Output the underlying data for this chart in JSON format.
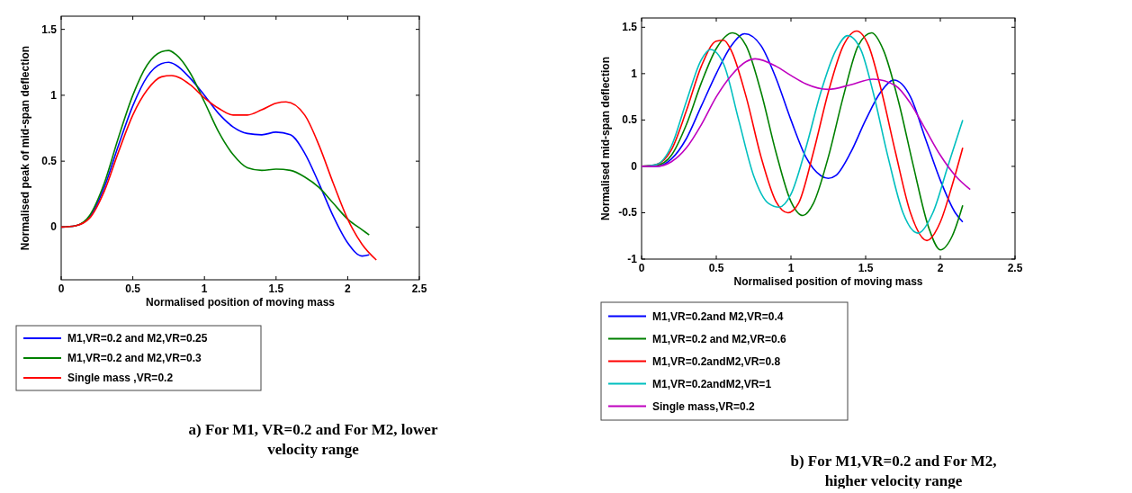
{
  "chart_data": [
    {
      "type": "line",
      "title": "a)    For M1, VR=0.2 and For M2, lower velocity range",
      "xlabel": "Normalised position of moving mass",
      "ylabel": "Normalised peak of mid-span deflection",
      "xlim": [
        0,
        2.5
      ],
      "xticks": [
        0,
        0.5,
        1,
        1.5,
        2,
        2.5
      ],
      "ylim": [
        -0.4,
        1.6
      ],
      "yticks": [
        0,
        0.5,
        1,
        1.5
      ],
      "legend": "bottom",
      "series": [
        {
          "name": "M1,VR=0.2 and M2,VR=0.25",
          "color": "#0000ff",
          "x": [
            0,
            0.1,
            0.2,
            0.3,
            0.4,
            0.5,
            0.6,
            0.7,
            0.75,
            0.8,
            0.9,
            1.0,
            1.1,
            1.2,
            1.3,
            1.4,
            1.5,
            1.6,
            1.7,
            1.8,
            1.9,
            2.0,
            2.1,
            2.15
          ],
          "values": [
            0,
            0.01,
            0.08,
            0.3,
            0.62,
            0.92,
            1.14,
            1.24,
            1.25,
            1.23,
            1.13,
            1.0,
            0.86,
            0.76,
            0.71,
            0.7,
            0.72,
            0.7,
            0.56,
            0.33,
            0.08,
            -0.12,
            -0.22,
            -0.21
          ]
        },
        {
          "name": "M1,VR=0.2 and M2,VR=0.3",
          "color": "#008000",
          "x": [
            0,
            0.1,
            0.2,
            0.3,
            0.4,
            0.5,
            0.6,
            0.7,
            0.75,
            0.8,
            0.9,
            1.0,
            1.1,
            1.2,
            1.3,
            1.4,
            1.5,
            1.6,
            1.7,
            1.8,
            1.9,
            2.0,
            2.1,
            2.15
          ],
          "values": [
            0,
            0.01,
            0.09,
            0.33,
            0.68,
            1.0,
            1.23,
            1.33,
            1.34,
            1.31,
            1.17,
            0.95,
            0.72,
            0.55,
            0.45,
            0.43,
            0.44,
            0.43,
            0.38,
            0.3,
            0.18,
            0.06,
            -0.02,
            -0.06
          ]
        },
        {
          "name": "Single mass ,VR=0.2",
          "color": "#ff0000",
          "x": [
            0,
            0.1,
            0.2,
            0.3,
            0.4,
            0.5,
            0.6,
            0.7,
            0.77,
            0.9,
            1.0,
            1.1,
            1.2,
            1.3,
            1.4,
            1.5,
            1.57,
            1.7,
            1.8,
            1.9,
            2.0,
            2.1,
            2.2
          ],
          "values": [
            0,
            0.01,
            0.07,
            0.27,
            0.57,
            0.85,
            1.04,
            1.14,
            1.15,
            1.08,
            0.98,
            0.9,
            0.85,
            0.85,
            0.89,
            0.94,
            0.95,
            0.85,
            0.62,
            0.33,
            0.06,
            -0.13,
            -0.25
          ]
        }
      ]
    },
    {
      "type": "line",
      "title": "b)            For M1,VR=0.2 and For M2, higher velocity range",
      "xlabel": "Normalised position of moving mass",
      "ylabel": "Normalised mid-span deflection",
      "xlim": [
        0,
        2.5
      ],
      "xticks": [
        0,
        0.5,
        1,
        1.5,
        2,
        2.5
      ],
      "ylim": [
        -1,
        1.6
      ],
      "yticks": [
        -1,
        -0.5,
        0,
        0.5,
        1,
        1.5
      ],
      "legend": "bottom",
      "series": [
        {
          "name": "M1,VR=0.2and M2,VR=0.4",
          "color": "#0000ff",
          "x": [
            0,
            0.1,
            0.2,
            0.3,
            0.4,
            0.5,
            0.6,
            0.69,
            0.8,
            0.9,
            1.0,
            1.1,
            1.2,
            1.25,
            1.3,
            1.4,
            1.5,
            1.6,
            1.69,
            1.8,
            1.9,
            2.0,
            2.1,
            2.15
          ],
          "values": [
            0,
            0,
            0.08,
            0.3,
            0.65,
            1.0,
            1.3,
            1.43,
            1.3,
            0.95,
            0.5,
            0.1,
            -0.1,
            -0.13,
            -0.1,
            0.15,
            0.5,
            0.8,
            0.93,
            0.75,
            0.3,
            -0.15,
            -0.5,
            -0.6
          ]
        },
        {
          "name": "M1,VR=0.2 and M2,VR=0.6",
          "color": "#008000",
          "x": [
            0,
            0.1,
            0.2,
            0.3,
            0.4,
            0.5,
            0.61,
            0.7,
            0.8,
            0.9,
            1.0,
            1.08,
            1.15,
            1.25,
            1.35,
            1.45,
            1.54,
            1.62,
            1.72,
            1.82,
            1.92,
            2.0,
            2.08,
            2.15
          ],
          "values": [
            0,
            0.01,
            0.12,
            0.45,
            0.9,
            1.27,
            1.44,
            1.3,
            0.8,
            0.15,
            -0.38,
            -0.53,
            -0.4,
            0.1,
            0.75,
            1.3,
            1.44,
            1.25,
            0.7,
            0,
            -0.65,
            -0.9,
            -0.75,
            -0.42
          ]
        },
        {
          "name": "M1,VR=0.2andM2,VR=0.8",
          "color": "#ff0000",
          "x": [
            0,
            0.1,
            0.2,
            0.3,
            0.4,
            0.5,
            0.55,
            0.6,
            0.7,
            0.8,
            0.9,
            0.98,
            1.05,
            1.15,
            1.25,
            1.35,
            1.44,
            1.52,
            1.6,
            1.7,
            1.8,
            1.91,
            2.0,
            2.08,
            2.15
          ],
          "values": [
            0,
            0.02,
            0.18,
            0.6,
            1.08,
            1.35,
            1.36,
            1.25,
            0.75,
            0.1,
            -0.38,
            -0.5,
            -0.4,
            0.15,
            0.8,
            1.3,
            1.46,
            1.3,
            0.85,
            0.15,
            -0.5,
            -0.8,
            -0.6,
            -0.2,
            0.2
          ]
        },
        {
          "name": "M1,VR=0.2andM2,VR=1",
          "color": "#00bfbf",
          "x": [
            0,
            0.1,
            0.2,
            0.3,
            0.4,
            0.46,
            0.55,
            0.65,
            0.75,
            0.85,
            0.92,
            1.0,
            1.1,
            1.2,
            1.3,
            1.38,
            1.47,
            1.55,
            1.65,
            1.75,
            1.85,
            1.95,
            2.05,
            2.15
          ],
          "values": [
            0,
            0.02,
            0.22,
            0.7,
            1.15,
            1.26,
            1.1,
            0.5,
            -0.1,
            -0.4,
            -0.44,
            -0.3,
            0.2,
            0.8,
            1.25,
            1.41,
            1.25,
            0.8,
            0.1,
            -0.5,
            -0.72,
            -0.5,
            0,
            0.5
          ]
        },
        {
          "name": "Single mass,VR=0.2",
          "color": "#bf00bf",
          "x": [
            0,
            0.1,
            0.2,
            0.3,
            0.4,
            0.5,
            0.6,
            0.7,
            0.76,
            0.9,
            1.0,
            1.1,
            1.25,
            1.4,
            1.55,
            1.7,
            1.8,
            1.9,
            2.0,
            2.1,
            2.2
          ],
          "values": [
            0,
            0,
            0.05,
            0.2,
            0.45,
            0.75,
            0.98,
            1.13,
            1.16,
            1.08,
            0.98,
            0.89,
            0.83,
            0.88,
            0.94,
            0.87,
            0.68,
            0.4,
            0.12,
            -0.1,
            -0.25
          ]
        }
      ]
    }
  ]
}
